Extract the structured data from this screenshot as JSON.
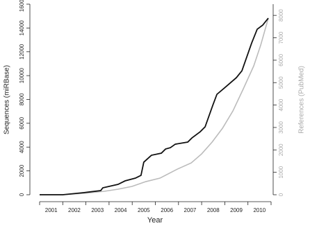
{
  "chart_data": {
    "type": "line",
    "x_label": "Year",
    "y_label": "Sequences (miRBase)",
    "y2_label": "References (PubMed)",
    "categories": [
      "2001",
      "2002",
      "2003",
      "2004",
      "2005",
      "2006",
      "2007",
      "2008",
      "2009",
      "2010"
    ],
    "xlim": [
      2001,
      2011
    ],
    "ylim": [
      0,
      16000
    ],
    "yticks": [
      0,
      2000,
      4000,
      6000,
      8000,
      10000,
      12000,
      14000,
      16000
    ],
    "y2lim": [
      0,
      8500
    ],
    "y2ticks": [
      0,
      1000,
      2000,
      3000,
      4000,
      5000,
      6000,
      7000,
      8000
    ],
    "series": [
      {
        "name": "Sequences (miRBase)",
        "color": "#111111",
        "x": [
          2001,
          2002,
          2002.9,
          2003.64,
          2003.73,
          2004.39,
          2004.69,
          2005.14,
          2005.38,
          2005.5,
          2005.83,
          2006.26,
          2006.44,
          2006.65,
          2006.86,
          2007.4,
          2007.58,
          2007.94,
          2008.15,
          2008.48,
          2008.66,
          2009.05,
          2009.5,
          2009.74,
          2010.16,
          2010.4,
          2010.64,
          2010.88
        ],
        "values": [
          0,
          0,
          174,
          349,
          581,
          872,
          1163,
          1395,
          1628,
          2733,
          3314,
          3488,
          3837,
          3953,
          4244,
          4419,
          4767,
          5291,
          5698,
          7500,
          8430,
          9070,
          9826,
          10407,
          12733,
          13895,
          14244,
          14826
        ]
      },
      {
        "name": "References (PubMed)",
        "color": "#bbbbbb",
        "axis": "y2",
        "x": [
          2001,
          2002,
          2002.9,
          2003.8,
          2004.39,
          2004.99,
          2005.59,
          2006.2,
          2006.95,
          2007.55,
          2008,
          2008.45,
          2008.9,
          2009.35,
          2009.8,
          2010.25,
          2010.55,
          2010.88
        ],
        "values": [
          0,
          0,
          62,
          154,
          247,
          370,
          586,
          741,
          1142,
          1420,
          1821,
          2346,
          2963,
          3735,
          4722,
          5741,
          6667,
          7870
        ]
      }
    ]
  }
}
